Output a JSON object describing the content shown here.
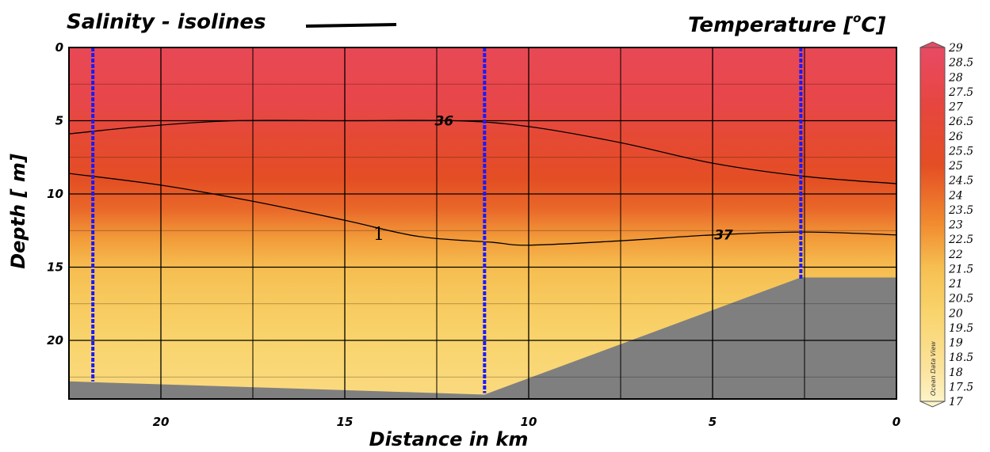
{
  "header": {
    "left_title": "Salinity - isolines",
    "right_title_prefix": "Temperature  [",
    "right_title_sup": "o",
    "right_title_suffix": "C]"
  },
  "watermark": "Ocean Data View",
  "stray_label": "1",
  "chart_data": {
    "type": "heatmap",
    "title": "Temperature [°C]",
    "xlabel": "Distance in km",
    "ylabel": "Depth  [ m]",
    "xlim": [
      22.5,
      0
    ],
    "ylim": [
      0,
      24
    ],
    "x_ticks": [
      20,
      15,
      10,
      5,
      0
    ],
    "y_ticks": [
      0,
      5,
      10,
      15,
      20
    ],
    "grid": true,
    "colorbar": {
      "min": 17,
      "max": 29,
      "step": 0.5,
      "ticks": [
        "29",
        "28.5",
        "28",
        "27.5",
        "27",
        "26.5",
        "26",
        "25.5",
        "25",
        "24.5",
        "24",
        "23.5",
        "23",
        "22.5",
        "22",
        "21.5",
        "21",
        "20.5",
        "20",
        "19.5",
        "19",
        "18.5",
        "18",
        "17.5",
        "17"
      ],
      "colors": {
        "29": "#e94a64",
        "27": "#e6463e",
        "25": "#e44e24",
        "23": "#f18c30",
        "21.5": "#f6c052",
        "20": "#f9d46c",
        "18": "#fbe4a0",
        "17": "#fdf3c8"
      }
    },
    "temperature_field": {
      "depths": [
        0,
        4,
        6,
        9,
        11,
        13,
        15,
        17,
        19,
        21,
        24
      ],
      "temps": [
        28.2,
        27.5,
        26.3,
        25.0,
        24.2,
        22.6,
        21.6,
        20.9,
        20.3,
        19.8,
        19.2
      ]
    },
    "salinity_isolines": [
      {
        "label": "36",
        "label_x": 12.3,
        "points": [
          [
            22.5,
            5.9
          ],
          [
            20.5,
            5.4
          ],
          [
            18,
            5.0
          ],
          [
            15,
            5.0
          ],
          [
            12,
            5.0
          ],
          [
            10,
            5.4
          ],
          [
            7.5,
            6.5
          ],
          [
            5,
            7.9
          ],
          [
            2.5,
            8.8
          ],
          [
            0,
            9.3
          ]
        ]
      },
      {
        "label": "37",
        "label_x": 4.7,
        "points": [
          [
            22.5,
            8.6
          ],
          [
            20,
            9.4
          ],
          [
            17.5,
            10.5
          ],
          [
            15,
            11.8
          ],
          [
            13,
            12.9
          ],
          [
            11,
            13.3
          ],
          [
            10,
            13.5
          ],
          [
            7.5,
            13.2
          ],
          [
            5,
            12.8
          ],
          [
            2.5,
            12.6
          ],
          [
            0,
            12.8
          ]
        ]
      }
    ],
    "stations": [
      {
        "x": 21.85,
        "max_depth": 22.8
      },
      {
        "x": 11.2,
        "max_depth": 23.6
      },
      {
        "x": 2.6,
        "max_depth": 15.8
      }
    ],
    "bottom_profile": [
      [
        22.5,
        22.8
      ],
      [
        11.2,
        23.7
      ],
      [
        2.6,
        15.7
      ],
      [
        0,
        15.7
      ]
    ]
  }
}
